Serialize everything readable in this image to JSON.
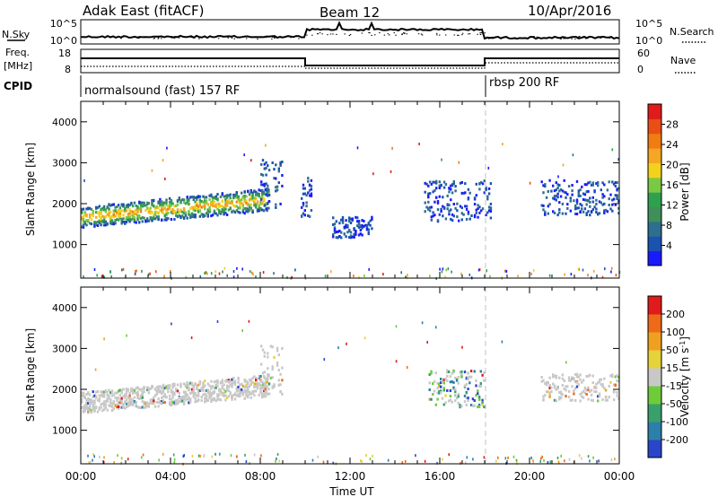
{
  "header": {
    "station": "Adak East (fitACF)",
    "beam": "Beam 12",
    "date": "10/Apr/2016"
  },
  "strip_labels": {
    "nsky": "N.Sky",
    "nsearch": "N.Search",
    "freq_line1": "Freq.",
    "freq_line2": "[MHz]",
    "nave": "Nave",
    "cpid": "CPID",
    "noise_ticks_left": [
      "10^5",
      "10^0"
    ],
    "noise_ticks_right": [
      "10^5",
      "10^0"
    ],
    "freq_ticks": [
      "18",
      "8"
    ],
    "nave_ticks": [
      "60",
      "0"
    ]
  },
  "cpid_segments": [
    {
      "label": "normalsound (fast) 157 RF",
      "start_hour": 0
    },
    {
      "label": "rbsp 200 RF",
      "start_hour": 18
    }
  ],
  "colors": {
    "power_scale": [
      "#1a1aff",
      "#1a52b0",
      "#2e6e8e",
      "#3f8f5a",
      "#2fa04f",
      "#7ac943",
      "#f2d21b",
      "#f5a623",
      "#f07c12",
      "#e94e15",
      "#e01b1b"
    ],
    "velocity_scale": [
      "#2a45c9",
      "#2c7fa8",
      "#39a06b",
      "#6ecb3a",
      "#c8c8c8",
      "#e6d23a",
      "#f0a020",
      "#ee6a18",
      "#e01b1b"
    ],
    "vertical_marker": "#c0c0c0"
  },
  "chart_data": [
    {
      "type": "heatmap",
      "title": "",
      "quantity": "Power",
      "xlabel": "",
      "ylabel": "Slant Range [km]",
      "xlim": [
        0,
        24
      ],
      "ylim": [
        180,
        4500
      ],
      "yticks": [
        "1000",
        "2000",
        "3000",
        "4000"
      ],
      "colorbar": {
        "label": "Power [dB]",
        "ticks": [
          "4",
          "8",
          "12",
          "16",
          "20",
          "24",
          "28"
        ],
        "range": [
          0,
          30
        ]
      },
      "echo_regions": [
        {
          "hours": [
            0.0,
            8.4
          ],
          "range_km": [
            1450,
            2300
          ],
          "note": "main band, rising"
        },
        {
          "hours": [
            8.0,
            9.0
          ],
          "range_km": [
            1900,
            3100
          ]
        },
        {
          "hours": [
            9.8,
            10.3
          ],
          "range_km": [
            1700,
            2700
          ]
        },
        {
          "hours": [
            11.2,
            13.0
          ],
          "range_km": [
            1200,
            1700
          ]
        },
        {
          "hours": [
            15.3,
            18.3
          ],
          "range_km": [
            1600,
            2600
          ]
        },
        {
          "hours": [
            20.5,
            24.0
          ],
          "range_km": [
            1750,
            2600
          ]
        }
      ]
    },
    {
      "type": "heatmap",
      "title": "",
      "quantity": "Velocity",
      "xlabel": "Time UT",
      "ylabel": "Slant Range [km]",
      "xlim": [
        0,
        24
      ],
      "ylim": [
        180,
        4500
      ],
      "xticks": [
        "00:00",
        "04:00",
        "08:00",
        "12:00",
        "16:00",
        "20:00",
        "00:00"
      ],
      "yticks": [
        "1000",
        "2000",
        "3000",
        "4000"
      ],
      "colorbar": {
        "label": "Velocity [m s",
        "label_superscript": "-1",
        "label_end": "]",
        "ticks": [
          "200",
          "100",
          "50",
          "15",
          "-15",
          "-50",
          "-100",
          "-200"
        ]
      },
      "echo_regions": [
        {
          "hours": [
            0.0,
            8.4
          ],
          "range_km": [
            1450,
            2300
          ],
          "velocity_ms": [
            -15,
            15
          ]
        },
        {
          "hours": [
            8.0,
            9.0
          ],
          "range_km": [
            1900,
            3100
          ],
          "velocity_ms": [
            -15,
            15
          ]
        },
        {
          "hours": [
            15.5,
            18.0
          ],
          "range_km": [
            1600,
            2500
          ],
          "velocity_ms": [
            -50,
            100
          ]
        },
        {
          "hours": [
            20.5,
            24.0
          ],
          "range_km": [
            1750,
            2400
          ],
          "velocity_ms": [
            -15,
            15
          ]
        }
      ]
    }
  ]
}
